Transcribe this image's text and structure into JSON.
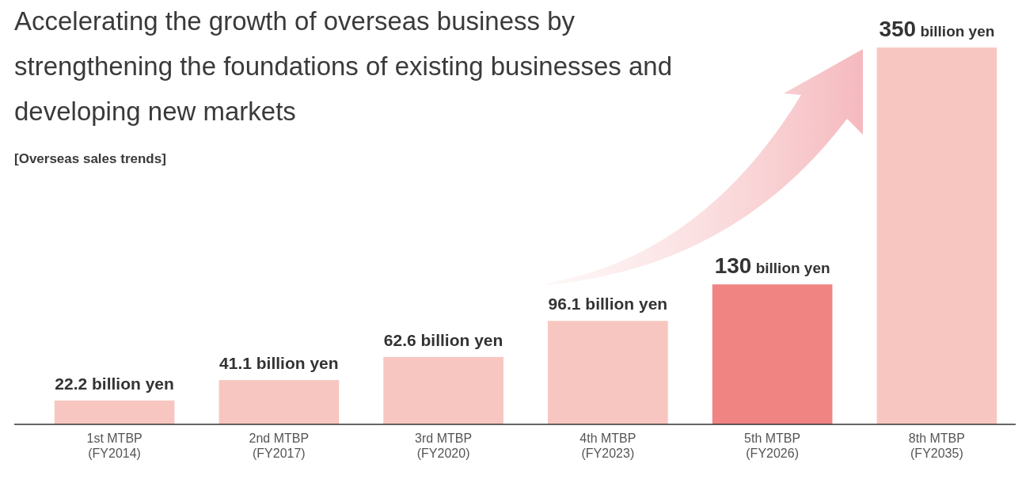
{
  "chart_data": {
    "type": "bar",
    "title": "Accelerating the growth of overseas business by strengthening the foundations of existing businesses and developing new markets",
    "subtitle": "[Overseas sales trends]",
    "categories": [
      "1st MTBP\n(FY2014)",
      "2nd MTBP\n(FY2017)",
      "3rd MTBP\n(FY2020)",
      "4th MTBP\n(FY2023)",
      "5th MTBP\n(FY2026)",
      "8th MTBP\n(FY2035)"
    ],
    "values": [
      22.2,
      41.1,
      62.6,
      96.1,
      130,
      350
    ],
    "colors": [
      "#f8c6c0",
      "#f8c6c0",
      "#f8c6c0",
      "#f8c6c0",
      "#f08482",
      "#f8c6c0"
    ],
    "value_labels": [
      "22.2 billion yen",
      "41.1 billion yen",
      "62.6 billion yen",
      "96.1 billion yen",
      "130 billion yen",
      "350 billion yen"
    ]
  }
}
